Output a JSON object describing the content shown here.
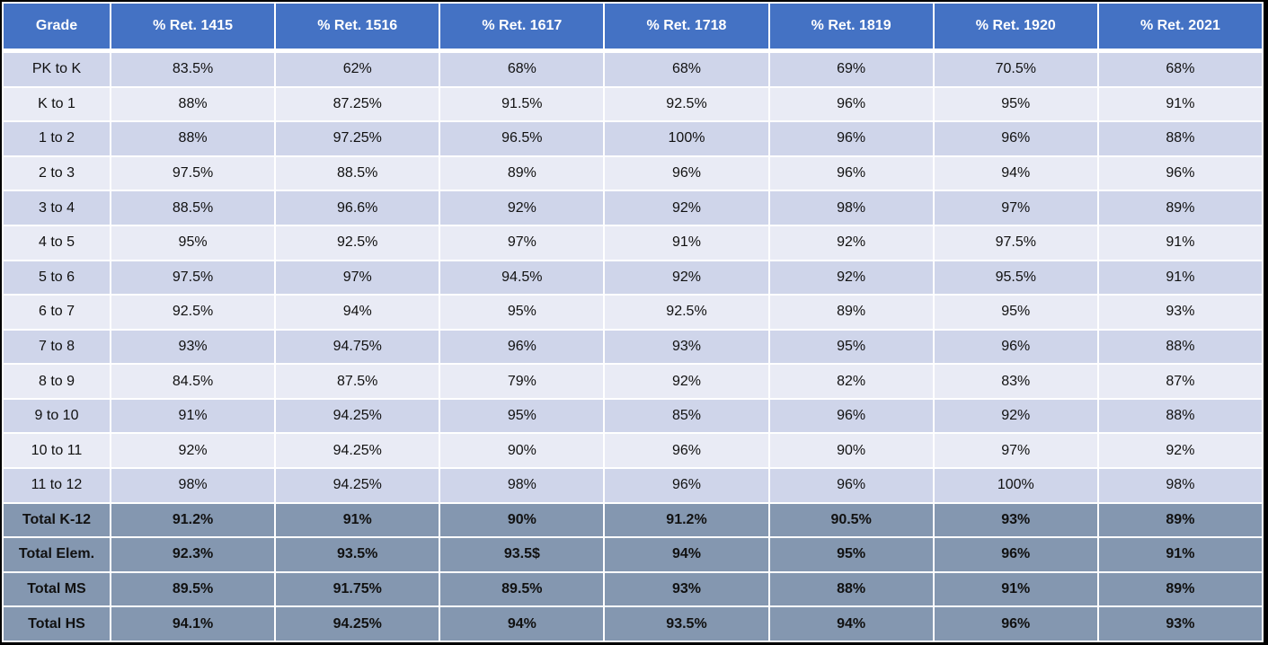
{
  "table": {
    "headers": [
      "Grade",
      "% Ret. 1415",
      "% Ret. 1516",
      "% Ret. 1617",
      "% Ret. 1718",
      "% Ret. 1819",
      "% Ret. 1920",
      "% Ret. 2021"
    ],
    "rows": [
      [
        "PK to K",
        "83.5%",
        "62%",
        "68%",
        "68%",
        "69%",
        "70.5%",
        "68%"
      ],
      [
        "K to 1",
        "88%",
        "87.25%",
        "91.5%",
        "92.5%",
        "96%",
        "95%",
        "91%"
      ],
      [
        "1 to 2",
        "88%",
        "97.25%",
        "96.5%",
        "100%",
        "96%",
        "96%",
        "88%"
      ],
      [
        "2 to 3",
        "97.5%",
        "88.5%",
        "89%",
        "96%",
        "96%",
        "94%",
        "96%"
      ],
      [
        "3 to 4",
        "88.5%",
        "96.6%",
        "92%",
        "92%",
        "98%",
        "97%",
        "89%"
      ],
      [
        "4 to 5",
        "95%",
        "92.5%",
        "97%",
        "91%",
        "92%",
        "97.5%",
        "91%"
      ],
      [
        "5 to 6",
        "97.5%",
        "97%",
        "94.5%",
        "92%",
        "92%",
        "95.5%",
        "91%"
      ],
      [
        "6 to 7",
        "92.5%",
        "94%",
        "95%",
        "92.5%",
        "89%",
        "95%",
        "93%"
      ],
      [
        "7 to 8",
        "93%",
        "94.75%",
        "96%",
        "93%",
        "95%",
        "96%",
        "88%"
      ],
      [
        "8 to 9",
        "84.5%",
        "87.5%",
        "79%",
        "92%",
        "82%",
        "83%",
        "87%"
      ],
      [
        "9 to 10",
        "91%",
        "94.25%",
        "95%",
        "85%",
        "96%",
        "92%",
        "88%"
      ],
      [
        "10 to 11",
        "92%",
        "94.25%",
        "90%",
        "96%",
        "90%",
        "97%",
        "92%"
      ],
      [
        "11 to 12",
        "98%",
        "94.25%",
        "98%",
        "96%",
        "96%",
        "100%",
        "98%"
      ]
    ],
    "totals": [
      [
        "Total K-12",
        "91.2%",
        "91%",
        "90%",
        "91.2%",
        "90.5%",
        "93%",
        "89%"
      ],
      [
        "Total Elem.",
        "92.3%",
        "93.5%",
        "93.5$",
        "94%",
        "95%",
        "96%",
        "91%"
      ],
      [
        "Total MS",
        "89.5%",
        "91.75%",
        "89.5%",
        "93%",
        "88%",
        "91%",
        "89%"
      ],
      [
        "Total HS",
        "94.1%",
        "94.25%",
        "94%",
        "93.5%",
        "94%",
        "96%",
        "93%"
      ]
    ]
  },
  "colors": {
    "header_bg": "#4472c4",
    "row_odd_bg": "#cfd5ea",
    "row_even_bg": "#e9ebf5",
    "total_bg": "#8497b0"
  }
}
